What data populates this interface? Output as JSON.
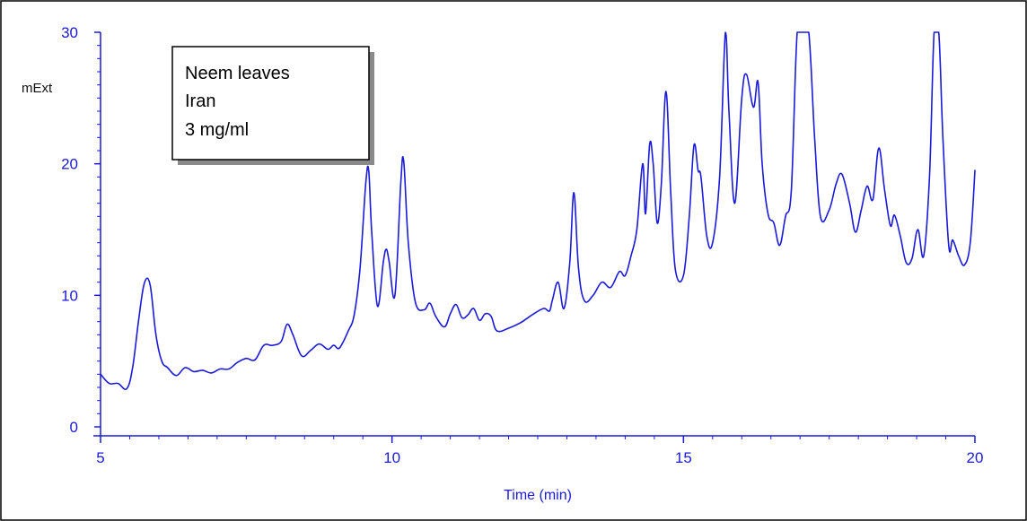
{
  "chart_data": {
    "type": "line",
    "xlabel": "Time (min)",
    "ylabel": "mExt",
    "xlim": [
      5,
      20
    ],
    "ylim": [
      0,
      30
    ],
    "x_ticks": [
      "5",
      "10",
      "15",
      "20"
    ],
    "y_ticks": [
      "0",
      "10",
      "20",
      "30"
    ],
    "annotation": [
      "Neem leaves",
      "Iran",
      "3 mg/ml"
    ],
    "grid": false,
    "line_color": "#1a1ad8",
    "series": [
      {
        "x": [
          5.0,
          5.15,
          5.3,
          5.45,
          5.55,
          5.65,
          5.75,
          5.85,
          5.95,
          6.05,
          6.15,
          6.3,
          6.45,
          6.6,
          6.75,
          6.9,
          7.05,
          7.2,
          7.35,
          7.5,
          7.65,
          7.8,
          7.95,
          8.1,
          8.2,
          8.3,
          8.45,
          8.6,
          8.75,
          8.9,
          9.0,
          9.1,
          9.25,
          9.35,
          9.45,
          9.55,
          9.6,
          9.65,
          9.75,
          9.85,
          9.9,
          9.95,
          10.05,
          10.15,
          10.2,
          10.28,
          10.4,
          10.55,
          10.65,
          10.75,
          10.9,
          11.0,
          11.1,
          11.2,
          11.3,
          11.4,
          11.5,
          11.6,
          11.7,
          11.8,
          12.0,
          12.2,
          12.4,
          12.6,
          12.7,
          12.75,
          12.85,
          12.95,
          13.05,
          13.12,
          13.2,
          13.3,
          13.45,
          13.6,
          13.75,
          13.9,
          14.0,
          14.1,
          14.2,
          14.3,
          14.35,
          14.42,
          14.48,
          14.55,
          14.62,
          14.7,
          14.78,
          14.86,
          15.0,
          15.1,
          15.18,
          15.25,
          15.3,
          15.4,
          15.5,
          15.62,
          15.72,
          15.78,
          15.88,
          16.0,
          16.08,
          16.2,
          16.28,
          16.35,
          16.45,
          16.55,
          16.65,
          16.75,
          16.85,
          16.95,
          17.05,
          17.15,
          17.25,
          17.35,
          17.5,
          17.62,
          17.72,
          17.85,
          17.95,
          18.05,
          18.15,
          18.25,
          18.35,
          18.45,
          18.55,
          18.62,
          18.72,
          18.82,
          18.92,
          19.02,
          19.12,
          19.22,
          19.3,
          19.38,
          19.45,
          19.55,
          19.62,
          19.72,
          19.82,
          19.92,
          20.0
        ],
        "y": [
          4.0,
          3.3,
          3.3,
          2.9,
          4.5,
          8.0,
          10.9,
          10.8,
          7.0,
          5.0,
          4.5,
          3.9,
          4.5,
          4.2,
          4.3,
          4.1,
          4.4,
          4.4,
          4.9,
          5.2,
          5.1,
          6.2,
          6.2,
          6.5,
          7.8,
          7.0,
          5.4,
          5.8,
          6.3,
          5.9,
          6.2,
          6.0,
          7.3,
          8.5,
          12.0,
          18.5,
          19.5,
          15.0,
          9.2,
          12.5,
          13.5,
          12.6,
          10.0,
          18.5,
          20.2,
          14.0,
          9.5,
          8.9,
          9.4,
          8.4,
          7.6,
          8.6,
          9.3,
          8.3,
          8.5,
          9.0,
          8.1,
          8.6,
          8.4,
          7.3,
          7.5,
          7.9,
          8.5,
          9.0,
          8.8,
          9.6,
          11.0,
          9.0,
          12.5,
          17.8,
          12.0,
          9.6,
          10.0,
          11.0,
          10.6,
          11.8,
          11.5,
          13.0,
          15.0,
          20.0,
          16.2,
          21.5,
          20.0,
          15.5,
          18.5,
          25.5,
          18.0,
          12.0,
          11.5,
          16.0,
          21.4,
          19.5,
          19.0,
          14.5,
          14.0,
          19.0,
          30.5,
          24.0,
          17.0,
          25.0,
          26.8,
          24.3,
          26.2,
          20.0,
          16.2,
          15.5,
          13.8,
          16.0,
          18.0,
          30.5,
          30.5,
          30.5,
          22.0,
          16.0,
          16.5,
          18.5,
          19.2,
          17.0,
          14.8,
          16.5,
          18.3,
          17.3,
          21.2,
          18.0,
          15.3,
          16.1,
          14.5,
          12.5,
          12.8,
          15.0,
          13.0,
          19.0,
          30.5,
          30.5,
          22.0,
          13.8,
          14.2,
          13.0,
          12.3,
          14.0,
          19.5
        ]
      }
    ]
  }
}
